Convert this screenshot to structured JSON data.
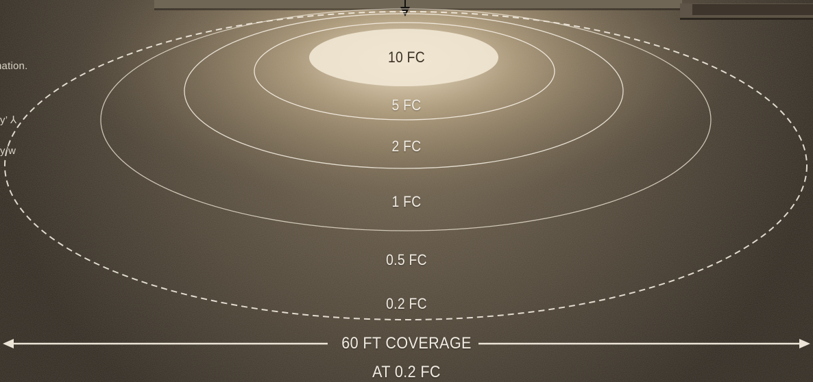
{
  "side_notes": {
    "line1": "nation.",
    "line2": "y’ ⅄",
    "line3": "y/w"
  },
  "zones": [
    {
      "label": "10 FC"
    },
    {
      "label": "5 FC"
    },
    {
      "label": "2 FC"
    },
    {
      "label": "1 FC"
    },
    {
      "label": "0.5 FC"
    },
    {
      "label": "0.2 FC"
    }
  ],
  "coverage": {
    "line1": "60 FT COVERAGE",
    "line2": "AT 0.2 FC"
  },
  "colors": {
    "floor": "#3a3329",
    "glow": "#e6d6ba",
    "ring_line": "#f3ece0"
  }
}
